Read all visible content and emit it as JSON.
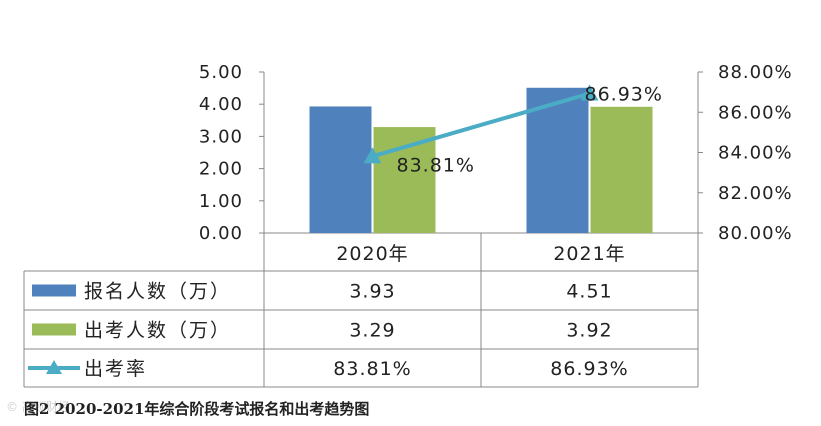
{
  "chart_data": {
    "type": "bar+line",
    "categories": [
      "2020年",
      "2021年"
    ],
    "series": [
      {
        "name": "报名人数（万）",
        "kind": "bar",
        "axis": "left",
        "color": "#4F81BD",
        "values": [
          3.93,
          4.51
        ],
        "display": [
          "3.93",
          "4.51"
        ]
      },
      {
        "name": "出考人数（万）",
        "kind": "bar",
        "axis": "left",
        "color": "#9BBB59",
        "values": [
          3.29,
          3.92
        ],
        "display": [
          "3.29",
          "3.92"
        ]
      },
      {
        "name": "出考率",
        "kind": "line",
        "axis": "right",
        "color": "#4BACC6",
        "values": [
          83.81,
          86.93
        ],
        "display": [
          "83.81%",
          "86.93%"
        ]
      }
    ],
    "left_axis": {
      "ylim": [
        0,
        5
      ],
      "ticks": [
        "0.00",
        "1.00",
        "2.00",
        "3.00",
        "4.00",
        "5.00"
      ]
    },
    "right_axis": {
      "ylim": [
        80,
        88
      ],
      "ticks": [
        "80.00%",
        "82.00%",
        "84.00%",
        "86.00%",
        "88.00%"
      ]
    },
    "data_labels": [
      "83.81%",
      "86.93%"
    ],
    "grid": false,
    "legend": "data-table"
  },
  "caption": "图2  2020-2021年综合阶段考试报名和出考趋势图",
  "watermark": "© 高顿财经"
}
